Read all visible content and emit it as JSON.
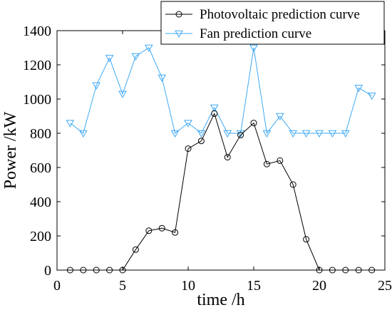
{
  "chart_data": {
    "type": "line",
    "title": "",
    "xlabel": "time /h",
    "ylabel": "Power /kW",
    "xlim": [
      0,
      25
    ],
    "ylim": [
      0,
      1400
    ],
    "xticks": [
      "0",
      "5",
      "10",
      "15",
      "20",
      "25"
    ],
    "yticks": [
      "0",
      "200",
      "400",
      "600",
      "800",
      "1000",
      "1200",
      "1400"
    ],
    "grid": false,
    "legend_position": "top-right",
    "x": [
      1,
      2,
      3,
      4,
      5,
      6,
      7,
      8,
      9,
      10,
      11,
      12,
      13,
      14,
      15,
      16,
      17,
      18,
      19,
      20,
      21,
      22,
      23,
      24
    ],
    "series": [
      {
        "name": "Photovoltaic prediction curve",
        "color": "#000000",
        "marker": "circle",
        "values": [
          0,
          0,
          0,
          0,
          0,
          120,
          230,
          245,
          220,
          710,
          755,
          915,
          660,
          790,
          860,
          620,
          640,
          500,
          180,
          0,
          0,
          0,
          0,
          0
        ]
      },
      {
        "name": "Fan prediction curve",
        "color": "#3fa9f5",
        "marker": "triangle-down",
        "values": [
          860,
          800,
          1080,
          1240,
          1030,
          1250,
          1300,
          1125,
          800,
          860,
          800,
          950,
          800,
          800,
          1300,
          800,
          900,
          800,
          800,
          800,
          800,
          800,
          1065,
          1020
        ]
      }
    ]
  }
}
